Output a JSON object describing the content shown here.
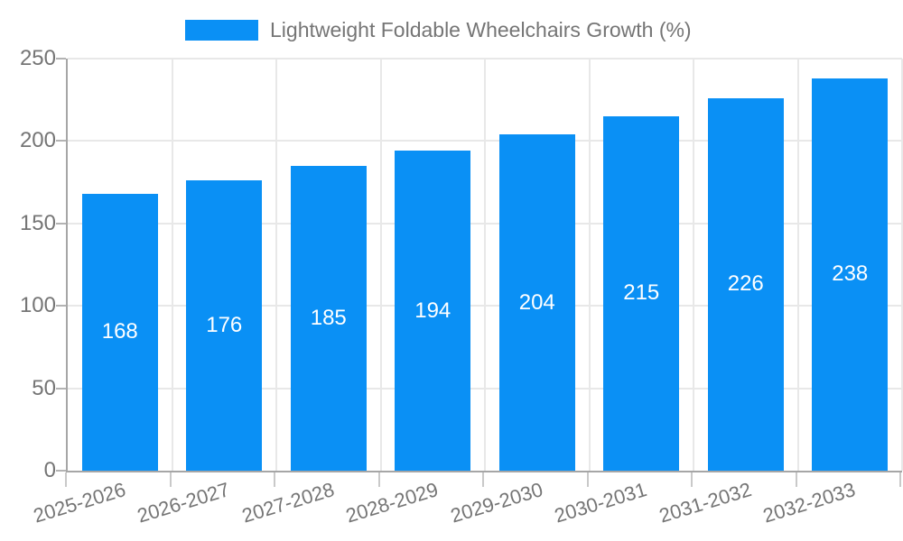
{
  "legend": {
    "label": "Lightweight Foldable Wheelchairs Growth (%)"
  },
  "chart_data": {
    "type": "bar",
    "title": "Lightweight Foldable Wheelchairs Growth (%)",
    "categories": [
      "2025-2026",
      "2026-2027",
      "2027-2028",
      "2028-2029",
      "2029-2030",
      "2030-2031",
      "2031-2032",
      "2032-2033"
    ],
    "values": [
      168,
      176,
      185,
      194,
      204,
      215,
      226,
      238
    ],
    "bar_labels": [
      "168",
      "176",
      "185",
      "194",
      "204",
      "215",
      "226",
      "238"
    ],
    "xlabel": "",
    "ylabel": "",
    "ylim": [
      0,
      250
    ],
    "yticks": [
      0,
      50,
      100,
      150,
      200,
      250
    ],
    "grid": true,
    "legend_position": "top",
    "colors": {
      "series": "#0a90f5",
      "bar_value_text": "#ffffff",
      "axis_text": "#757575",
      "axis_line": "#a6a6a6",
      "gridline": "#e8e8e8"
    }
  }
}
